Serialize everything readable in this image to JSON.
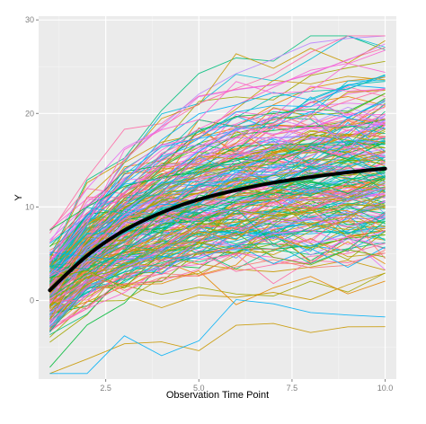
{
  "chart_data": {
    "type": "line",
    "xlabel": "Observation Time Point",
    "ylabel": "Y",
    "xlim": [
      0.7,
      10.3
    ],
    "ylim": [
      -8.4,
      30.4
    ],
    "x_ticks": [
      2.5,
      5.0,
      7.5,
      10.0
    ],
    "x_tick_labels": [
      "2.5",
      "5.0",
      "7.5",
      "10.0"
    ],
    "y_ticks": [
      0,
      10,
      20,
      30
    ],
    "y_tick_labels": [
      "0",
      "10",
      "20",
      "30"
    ],
    "grid": true,
    "legend": "none",
    "background": "#ebebeb",
    "x": [
      1,
      2,
      3,
      4,
      5,
      6,
      7,
      8,
      9,
      10
    ],
    "individual_series_count": 250,
    "individual_series_range": {
      "min": -7.8,
      "max": 28.3
    },
    "individual_series_colors": [
      "#f8766d",
      "#e58700",
      "#c99800",
      "#a3a500",
      "#6bb100",
      "#00ba38",
      "#00bf7d",
      "#00c0af",
      "#00bcd8",
      "#00b0f6",
      "#619cff",
      "#b983ff",
      "#e76bf3",
      "#fd61d1",
      "#ff67a4"
    ],
    "mean_curve": {
      "color": "#000000",
      "values": [
        1.1,
        4.8,
        7.5,
        9.4,
        10.8,
        11.8,
        12.6,
        13.2,
        13.7,
        14.1
      ]
    }
  }
}
